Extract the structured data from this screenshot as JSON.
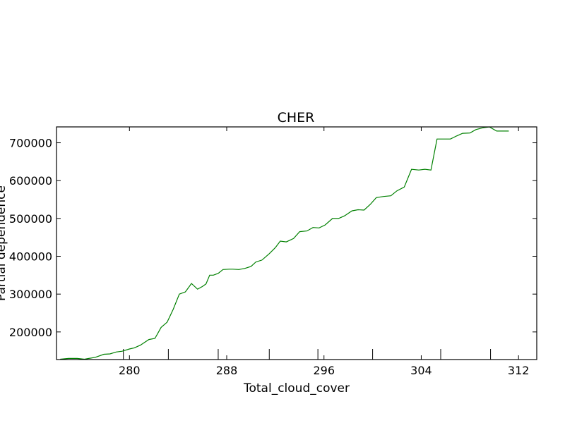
{
  "chart_data": {
    "type": "line",
    "title": "CHER",
    "xlabel": "Total_cloud_cover",
    "ylabel": "Partial dependence",
    "xlim": [
      274,
      313.5
    ],
    "ylim": [
      127000,
      742000
    ],
    "xticks": [
      280,
      288,
      296,
      304,
      312
    ],
    "yticks": [
      200000,
      300000,
      400000,
      500000,
      600000,
      700000
    ],
    "grid": false,
    "series": [
      {
        "name": "",
        "color": "#008000",
        "x": [
          274.3,
          275.0,
          275.7,
          276.3,
          277.2,
          277.9,
          278.4,
          278.9,
          279.4,
          280.0,
          280.4,
          280.9,
          281.6,
          282.1,
          282.6,
          283.1,
          283.6,
          284.1,
          284.6,
          285.1,
          285.6,
          286.0,
          286.3,
          286.6,
          286.9,
          287.3,
          287.7,
          288.2,
          288.5,
          289.0,
          289.5,
          290.0,
          290.4,
          290.9,
          291.5,
          292.0,
          292.4,
          292.9,
          293.5,
          294.0,
          294.6,
          295.1,
          295.6,
          296.1,
          296.7,
          297.2,
          297.7,
          298.3,
          298.8,
          299.3,
          299.8,
          300.3,
          300.9,
          301.5,
          302.0,
          302.6,
          303.2,
          303.8,
          304.3,
          304.8,
          305.3,
          305.8,
          306.4,
          306.9,
          307.4,
          308.0,
          308.5,
          309.1,
          309.6,
          310.2,
          310.7,
          311.2
        ],
        "y": [
          128000,
          130000,
          130000,
          128000,
          133000,
          141000,
          142000,
          147000,
          149000,
          155000,
          158000,
          165000,
          180000,
          183000,
          212000,
          226000,
          260000,
          300000,
          306000,
          328000,
          313000,
          320000,
          327000,
          350000,
          350000,
          355000,
          365000,
          366000,
          366000,
          365000,
          368000,
          373000,
          385000,
          390000,
          407000,
          423000,
          440000,
          438000,
          447000,
          465000,
          467000,
          476000,
          475000,
          483000,
          500000,
          500000,
          507000,
          520000,
          523000,
          522000,
          537000,
          555000,
          558000,
          560000,
          573000,
          583000,
          630000,
          628000,
          630000,
          628000,
          710000,
          710000,
          710000,
          718000,
          725000,
          726000,
          735000,
          740000,
          742000,
          731000,
          731000,
          731000
        ]
      }
    ]
  }
}
